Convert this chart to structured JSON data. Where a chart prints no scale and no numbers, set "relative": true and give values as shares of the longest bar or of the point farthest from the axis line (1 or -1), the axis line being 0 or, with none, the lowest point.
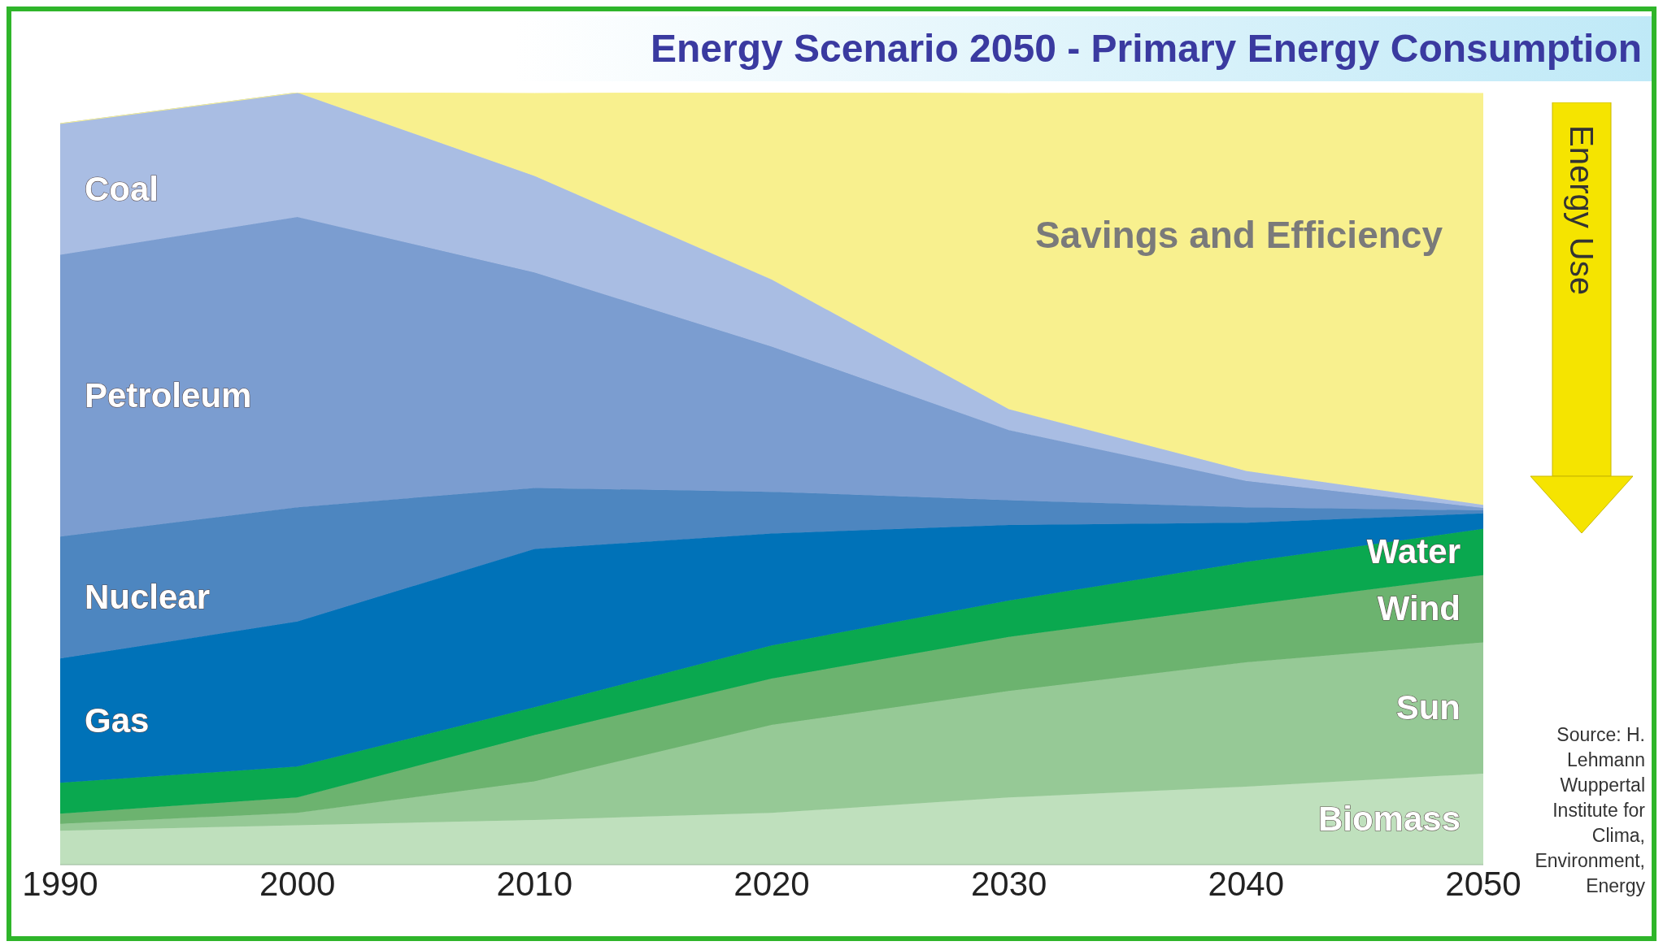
{
  "chart_data": {
    "type": "area",
    "title": "Energy Scenario 2050 - Primary Energy Consumption",
    "relative": true,
    "stacked": true,
    "x": [
      1990,
      2000,
      2010,
      2020,
      2030,
      2040,
      2050
    ],
    "xlim": [
      1990,
      2050
    ],
    "xticks": [
      1990,
      2000,
      2010,
      2020,
      2030,
      2040,
      2050
    ],
    "series": [
      {
        "name": "Biomass",
        "color": "#bfe0bd",
        "values": [
          0.044,
          0.051,
          0.058,
          0.067,
          0.087,
          0.101,
          0.118
        ]
      },
      {
        "name": "Sun",
        "color": "#96c996",
        "values": [
          0.009,
          0.016,
          0.05,
          0.114,
          0.138,
          0.161,
          0.17
        ]
      },
      {
        "name": "Wind",
        "color": "#6cb36f",
        "values": [
          0.013,
          0.02,
          0.06,
          0.06,
          0.07,
          0.074,
          0.087
        ]
      },
      {
        "name": "Water",
        "color": "#0aa84f",
        "values": [
          0.04,
          0.04,
          0.036,
          0.043,
          0.047,
          0.056,
          0.06
        ]
      },
      {
        "name": "Gas",
        "color": "#0072b8",
        "values": [
          0.161,
          0.188,
          0.205,
          0.145,
          0.098,
          0.051,
          0.02
        ]
      },
      {
        "name": "Nuclear",
        "color": "#4d86c0",
        "values": [
          0.158,
          0.148,
          0.079,
          0.054,
          0.032,
          0.02,
          0.004
        ]
      },
      {
        "name": "Petroleum",
        "color": "#7b9dd0",
        "values": [
          0.365,
          0.376,
          0.279,
          0.188,
          0.091,
          0.034,
          0.003
        ]
      },
      {
        "name": "Coal",
        "color": "#a9bde3",
        "values": [
          0.17,
          0.161,
          0.125,
          0.087,
          0.027,
          0.013,
          0.004
        ]
      },
      {
        "name": "Savings and Efficiency",
        "color": "#f8f08e",
        "values": [
          0,
          0,
          0.107,
          0.242,
          0.409,
          0.49,
          0.533
        ]
      }
    ],
    "annotations": [
      "Energy Use",
      "Source: H. Lehmann Wuppertal Institute for Clima, Environment, Energy"
    ]
  }
}
